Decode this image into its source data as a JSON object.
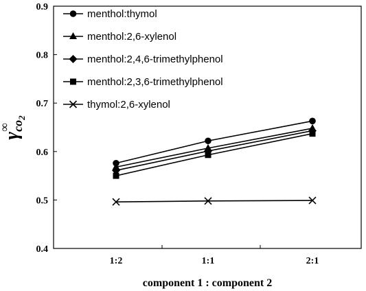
{
  "chart_data": {
    "type": "line",
    "title": "",
    "xlabel": "component 1 : component 2",
    "ylabel": {
      "symbol": "γ",
      "superscript": "∞",
      "subscript": "co",
      "subscript_digit": "2"
    },
    "categories": [
      "1:2",
      "1:1",
      "2:1"
    ],
    "ylim": [
      0.4,
      0.9
    ],
    "yticks": [
      0.4,
      0.5,
      0.6,
      0.7,
      0.8,
      0.9
    ],
    "ytick_labels": [
      "0.4",
      "0.5",
      "0.6",
      "0.7",
      "0.8",
      "0.9"
    ],
    "grid": false,
    "legend_position": "top-left",
    "series": [
      {
        "name": "menthol:thymol",
        "marker": "circle",
        "values": [
          0.576,
          0.622,
          0.663
        ]
      },
      {
        "name": "menthol:2,6-xylenol",
        "marker": "triangle",
        "values": [
          0.568,
          0.607,
          0.648
        ]
      },
      {
        "name": "menthol:2,4,6-trimethylphenol",
        "marker": "diamond",
        "values": [
          0.561,
          0.601,
          0.643
        ]
      },
      {
        "name": "menthol:2,3,6-trimethylphenol",
        "marker": "square",
        "values": [
          0.55,
          0.593,
          0.637
        ]
      },
      {
        "name": "thymol:2,6-xylenol",
        "marker": "x",
        "values": [
          0.496,
          0.498,
          0.499
        ]
      }
    ],
    "colors": {
      "line": "#000000",
      "marker": "#000000"
    }
  }
}
